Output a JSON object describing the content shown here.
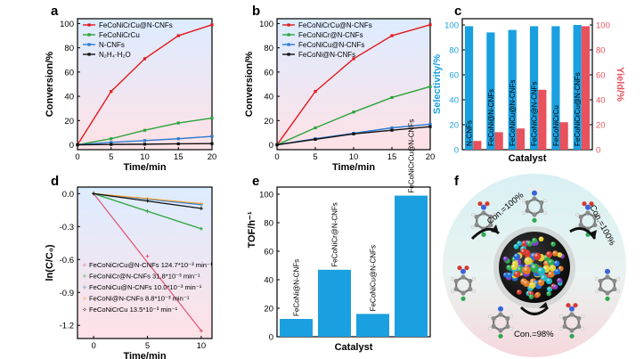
{
  "panels": {
    "a": "a",
    "b": "b",
    "c": "c",
    "d": "d",
    "e": "e",
    "f": "f"
  },
  "colors": {
    "red": "#e31a1c",
    "green": "#2aa43a",
    "blue": "#2c7bd1",
    "black": "#111111",
    "orange": "#f2a33a",
    "pink": "#e05b7a",
    "bar_blue": "#1aa0e0",
    "bar_red": "#e8525d"
  },
  "chart_data": [
    {
      "id": "a",
      "type": "line",
      "xlabel": "Time/min",
      "ylabel": "Conversion/%",
      "xlim": [
        0,
        20
      ],
      "ylim": [
        -4,
        104
      ],
      "xticks": [
        0,
        5,
        10,
        15,
        20
      ],
      "yticks": [
        0,
        20,
        40,
        60,
        80,
        100
      ],
      "series": [
        {
          "name": "FeCoNiCrCu@N-CNFs",
          "color": "#e31a1c",
          "x": [
            0,
            5,
            10,
            15,
            20
          ],
          "y": [
            0,
            44,
            71,
            90,
            99
          ]
        },
        {
          "name": "FeCoNiCrCu",
          "color": "#2aa43a",
          "x": [
            0,
            5,
            10,
            15,
            20
          ],
          "y": [
            0,
            5,
            12,
            18,
            22
          ]
        },
        {
          "name": "N-CNFs",
          "color": "#2c7bd1",
          "x": [
            0,
            5,
            10,
            15,
            20
          ],
          "y": [
            0,
            2,
            3.5,
            5,
            7
          ]
        },
        {
          "name": "N₂H₄·H₂O",
          "color": "#111111",
          "x": [
            0,
            5,
            10,
            15,
            20
          ],
          "y": [
            0,
            0.3,
            0.5,
            0.8,
            1
          ]
        }
      ]
    },
    {
      "id": "b",
      "type": "line",
      "xlabel": "Time/min",
      "ylabel": "Conversion/%",
      "xlim": [
        0,
        20
      ],
      "ylim": [
        -4,
        104
      ],
      "xticks": [
        0,
        5,
        10,
        15,
        20
      ],
      "yticks": [
        0,
        20,
        40,
        60,
        80,
        100
      ],
      "series": [
        {
          "name": "FeCoNiCrCu@N-CNFs",
          "color": "#e31a1c",
          "x": [
            0,
            5,
            10,
            15,
            20
          ],
          "y": [
            0,
            44,
            71,
            90,
            99
          ]
        },
        {
          "name": "FeCoNiCr@N-CNFs",
          "color": "#2aa43a",
          "x": [
            0,
            5,
            10,
            15,
            20
          ],
          "y": [
            0,
            14,
            27,
            39,
            48
          ]
        },
        {
          "name": "FeCoNiCu@N-CNFs",
          "color": "#2c7bd1",
          "x": [
            0,
            5,
            10,
            15,
            20
          ],
          "y": [
            0,
            5,
            9.5,
            14,
            17
          ]
        },
        {
          "name": "FeCoNi@N-CNFs",
          "color": "#111111",
          "x": [
            0,
            5,
            10,
            15,
            20
          ],
          "y": [
            0,
            4.5,
            9,
            12,
            15
          ]
        }
      ]
    },
    {
      "id": "c",
      "type": "bar",
      "xlabel": "Catalyst",
      "ylabel": "Selectivity/%",
      "y2label": "Yield/%",
      "ylim": [
        0,
        105
      ],
      "yticks": [
        0,
        20,
        40,
        60,
        80,
        100
      ],
      "categories": [
        "N-CNFs",
        "FeCoNi@N-CNFs",
        "FeCoNiCu@N-CNFs",
        "FeCoNiCr@N-CNFs",
        "FeCoNiCrCu",
        "FeCoNiCrCu@N-CNFs"
      ],
      "series": [
        {
          "name": "Selectivity",
          "color": "#1aa0e0",
          "values": [
            99,
            94,
            96,
            99,
            99,
            100
          ]
        },
        {
          "name": "Yield",
          "color": "#e8525d",
          "values": [
            7,
            14,
            17,
            48,
            22,
            99
          ]
        }
      ]
    },
    {
      "id": "d",
      "type": "line",
      "xlabel": "Time/min",
      "ylabel": "ln(C/C₀)",
      "xlim": [
        -1.5,
        11
      ],
      "ylim": [
        -1.32,
        0.06
      ],
      "xticks": [
        0,
        5,
        10
      ],
      "yticks": [
        0.0,
        -0.3,
        -0.6,
        -0.9,
        -1.2
      ],
      "series": [
        {
          "name": "FeCoNiCrCu@N-CNFs",
          "k": "124.7*10⁻³ min⁻¹",
          "color": "#e05b7a",
          "x": [
            0,
            5,
            10
          ],
          "y": [
            0,
            -0.57,
            -1.25
          ]
        },
        {
          "name": "FeCoNiCr@N-CNFs",
          "k": "31.8*10⁻³ min⁻¹",
          "color": "#2aa43a",
          "x": [
            0,
            5,
            10
          ],
          "y": [
            0,
            -0.16,
            -0.32
          ]
        },
        {
          "name": "FeCoNiCu@N-CNFs",
          "k": "10.0*10⁻³ min⁻¹",
          "color": "#2c7bd1",
          "x": [
            0,
            5,
            10
          ],
          "y": [
            0,
            -0.05,
            -0.1
          ]
        },
        {
          "name": "FeCoNi@N-CNFs",
          "k": "8.8*10⁻³ min⁻¹",
          "color": "#f2a33a",
          "x": [
            0,
            5,
            10
          ],
          "y": [
            0,
            -0.045,
            -0.09
          ]
        },
        {
          "name": "FeCoNiCrCu",
          "k": "13.5*10⁻³ min⁻¹",
          "color": "#111111",
          "x": [
            0,
            5,
            10
          ],
          "y": [
            0,
            -0.065,
            -0.135
          ]
        }
      ]
    },
    {
      "id": "e",
      "type": "bar",
      "xlabel": "Catalyst",
      "ylabel": "TOF/h⁻¹",
      "ylim": [
        0,
        105
      ],
      "yticks": [
        0,
        20,
        40,
        60,
        80,
        100
      ],
      "categories": [
        "FeCoNi@N-CNFs",
        "FeCoNiCr@N-CNFs",
        "FeCoNiCu@N-CNFs",
        "FeCoNiCrCu@N-CNFs"
      ],
      "values": [
        12.5,
        47,
        16,
        99
      ],
      "color": "#1aa0e0"
    }
  ],
  "panel_f": {
    "conversions": [
      "Con.=100%",
      "Con.=100%",
      "Con.=98%"
    ]
  }
}
